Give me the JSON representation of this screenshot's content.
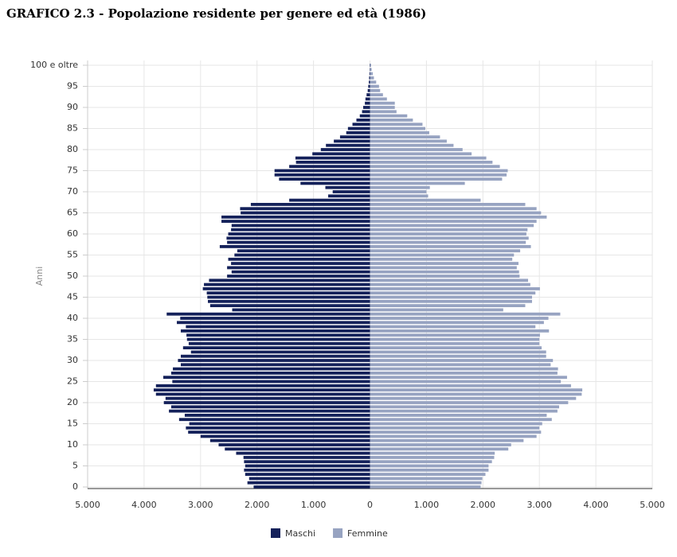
{
  "chart_data": {
    "type": "pyramid",
    "title": "GRAFICO 2.3 - Popolazione residente per genere ed età (1986)",
    "y_label": "Anni",
    "categories": [
      "0",
      null,
      null,
      null,
      null,
      "5",
      null,
      null,
      null,
      null,
      "10",
      null,
      null,
      null,
      null,
      "15",
      null,
      null,
      null,
      null,
      "20",
      null,
      null,
      null,
      null,
      "25",
      null,
      null,
      null,
      null,
      "30",
      null,
      null,
      null,
      null,
      "35",
      null,
      null,
      null,
      null,
      "40",
      null,
      null,
      null,
      null,
      "45",
      null,
      null,
      null,
      null,
      "50",
      null,
      null,
      null,
      null,
      "55",
      null,
      null,
      null,
      null,
      "60",
      null,
      null,
      null,
      null,
      "65",
      null,
      null,
      null,
      null,
      "70",
      null,
      null,
      null,
      null,
      "75",
      null,
      null,
      null,
      null,
      "80",
      null,
      null,
      null,
      null,
      "85",
      null,
      null,
      null,
      null,
      "90",
      null,
      null,
      null,
      null,
      "95",
      null,
      null,
      null,
      null,
      "100 e oltre"
    ],
    "series": [
      {
        "name": "Maschi",
        "color": "#14215a",
        "values": [
          -2060,
          -2170,
          -2140,
          -2210,
          -2230,
          -2210,
          -2230,
          -2240,
          -2370,
          -2570,
          -2680,
          -2830,
          -3000,
          -3220,
          -3260,
          -3200,
          -3380,
          -3280,
          -3560,
          -3520,
          -3650,
          -3620,
          -3790,
          -3830,
          -3790,
          -3500,
          -3660,
          -3520,
          -3490,
          -3350,
          -3400,
          -3350,
          -3170,
          -3310,
          -3210,
          -3240,
          -3250,
          -3350,
          -3260,
          -3420,
          -3360,
          -3600,
          -2440,
          -2830,
          -2870,
          -2880,
          -2890,
          -2960,
          -2940,
          -2850,
          -2530,
          -2450,
          -2530,
          -2460,
          -2510,
          -2400,
          -2350,
          -2660,
          -2530,
          -2540,
          -2510,
          -2460,
          -2450,
          -2630,
          -2630,
          -2290,
          -2300,
          -2110,
          -1430,
          -740,
          -660,
          -790,
          -1230,
          -1610,
          -1690,
          -1690,
          -1430,
          -1310,
          -1320,
          -1020,
          -870,
          -780,
          -640,
          -530,
          -420,
          -390,
          -310,
          -240,
          -180,
          -140,
          -120,
          -90,
          -80,
          -60,
          -40,
          -30,
          -20,
          -15,
          -10,
          -5,
          -5
        ]
      },
      {
        "name": "Femmine",
        "color": "#97a3c1",
        "values": [
          1960,
          1975,
          1990,
          2045,
          2100,
          2100,
          2160,
          2200,
          2210,
          2450,
          2500,
          2720,
          2950,
          3030,
          3000,
          3050,
          3220,
          3130,
          3320,
          3350,
          3510,
          3650,
          3750,
          3760,
          3560,
          3380,
          3490,
          3320,
          3330,
          3200,
          3240,
          3120,
          3120,
          3040,
          3000,
          3000,
          3010,
          3170,
          2930,
          3080,
          3160,
          3370,
          2360,
          2750,
          2870,
          2870,
          2930,
          3010,
          2840,
          2800,
          2650,
          2640,
          2600,
          2630,
          2520,
          2550,
          2660,
          2850,
          2760,
          2810,
          2770,
          2790,
          2900,
          2950,
          3130,
          3030,
          2950,
          2750,
          1960,
          1030,
          1000,
          1060,
          1680,
          2340,
          2420,
          2440,
          2300,
          2170,
          2060,
          1800,
          1640,
          1480,
          1360,
          1240,
          1050,
          980,
          930,
          760,
          660,
          470,
          440,
          440,
          300,
          230,
          180,
          160,
          110,
          70,
          50,
          30,
          20
        ]
      }
    ],
    "xlim": [
      -5000,
      5000
    ],
    "xticks": [
      {
        "value": -5000,
        "label": "5.000"
      },
      {
        "value": -4000,
        "label": "4.000"
      },
      {
        "value": -3000,
        "label": "3.000"
      },
      {
        "value": -2000,
        "label": "2.000"
      },
      {
        "value": -1000,
        "label": "1.000"
      },
      0,
      {
        "value": 1000,
        "label": "1.000"
      },
      {
        "value": 2000,
        "label": "2.000"
      },
      {
        "value": 3000,
        "label": "3.000"
      },
      {
        "value": 4000,
        "label": "4.000"
      },
      {
        "value": 5000,
        "label": "5.000"
      }
    ],
    "grid": true,
    "legend": "bottom"
  }
}
